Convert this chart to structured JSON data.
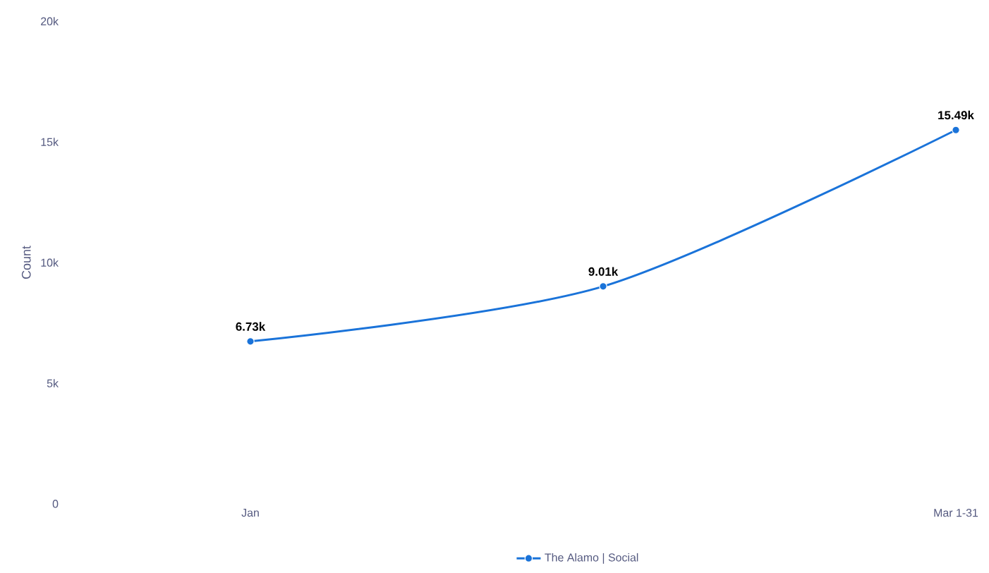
{
  "chart_data": {
    "type": "line",
    "ylabel": "Count",
    "categories": [
      "Jan",
      null,
      "Mar 1-31"
    ],
    "series": [
      {
        "name": "The Alamo | Social",
        "color": "#1a73d9",
        "values": [
          6730,
          9010,
          15490
        ],
        "value_labels": [
          "6.73k",
          "9.01k",
          "15.49k"
        ]
      }
    ],
    "ylim": [
      0,
      20000
    ],
    "yticks": [
      0,
      {
        "value": 5000,
        "label": "5k"
      },
      {
        "value": 10000,
        "label": "10k"
      },
      {
        "value": 15000,
        "label": "15k"
      },
      {
        "value": 20000,
        "label": "20k"
      }
    ],
    "marker": "circle",
    "legend": "bottom"
  }
}
